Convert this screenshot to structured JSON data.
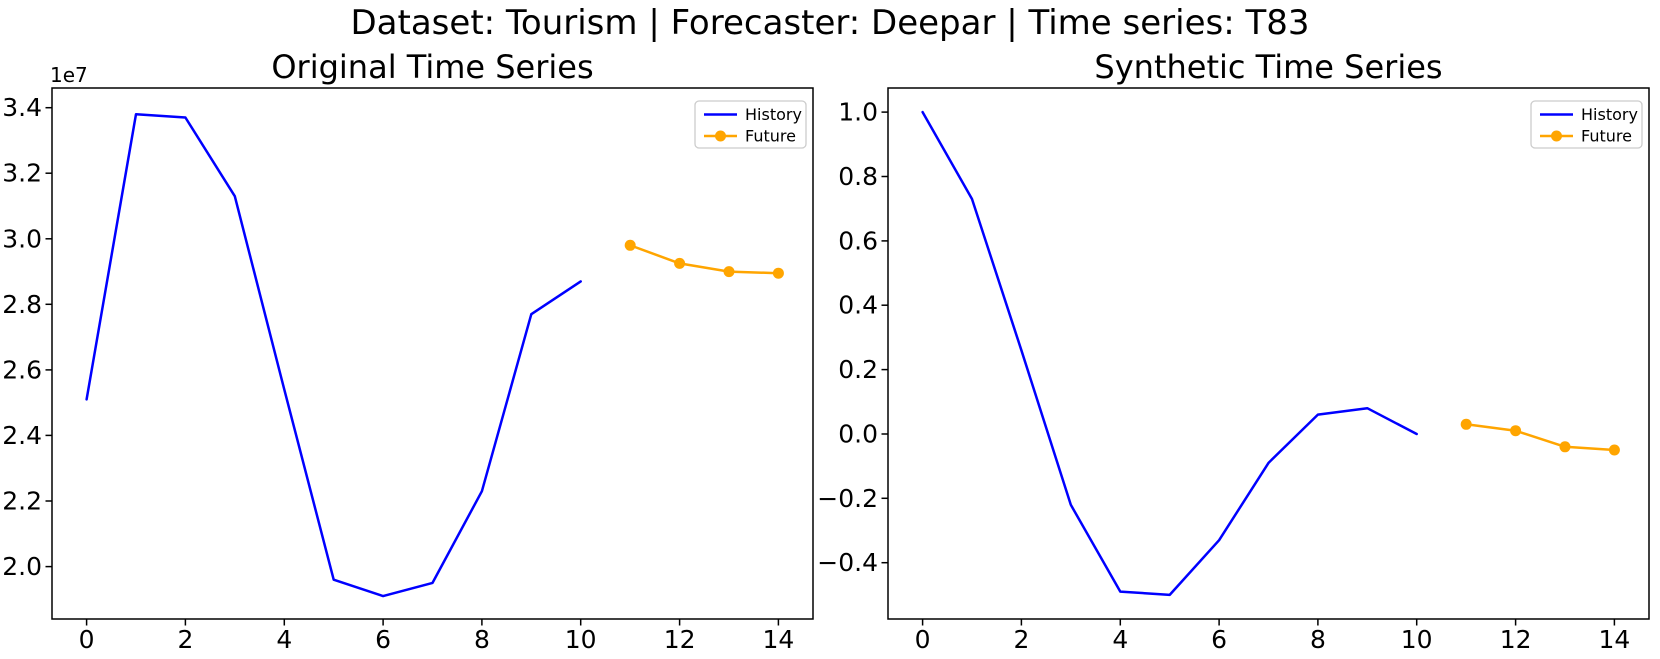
{
  "suptitle": "Dataset: Tourism | Forecaster: Deepar | Time series: T83",
  "colors": {
    "history": "#0000ff",
    "future": "#ffa500",
    "axis": "#000000",
    "text": "#000000",
    "legend_border": "#cccccc",
    "background": "#ffffff"
  },
  "chart_data": [
    {
      "type": "line",
      "title": "Original Time Series",
      "y_offset_label": "1e7",
      "legend_position": "upper right",
      "grid": false,
      "xlabel": "",
      "ylabel": "",
      "xlim": [
        -0.7,
        14.7
      ],
      "ylim": [
        18400000,
        34600000
      ],
      "xticks": {
        "values": [
          0,
          2,
          4,
          6,
          8,
          10,
          12,
          14
        ],
        "labels": [
          "0",
          "2",
          "4",
          "6",
          "8",
          "10",
          "12",
          "14"
        ]
      },
      "yticks": {
        "values": [
          20000000,
          22000000,
          24000000,
          26000000,
          28000000,
          30000000,
          32000000,
          34000000
        ],
        "labels": [
          "2.0",
          "2.2",
          "2.4",
          "2.6",
          "2.8",
          "3.0",
          "3.2",
          "3.4"
        ]
      },
      "series": [
        {
          "name": "History",
          "color_key": "history",
          "marker": "none",
          "x": [
            0,
            1,
            2,
            3,
            4,
            5,
            6,
            7,
            8,
            9,
            10
          ],
          "values": [
            25100000,
            33800000,
            33700000,
            31300000,
            25400000,
            19600000,
            19100000,
            19500000,
            22300000,
            27700000,
            28700000
          ]
        },
        {
          "name": "Future",
          "color_key": "future",
          "marker": "circle",
          "x": [
            11,
            12,
            13,
            14
          ],
          "values": [
            29800000,
            29250000,
            29000000,
            28950000
          ]
        }
      ]
    },
    {
      "type": "line",
      "title": "Synthetic Time Series",
      "y_offset_label": "",
      "legend_position": "upper right",
      "grid": false,
      "xlabel": "",
      "ylabel": "",
      "xlim": [
        -0.7,
        14.7
      ],
      "ylim": [
        -0.575,
        1.075
      ],
      "xticks": {
        "values": [
          0,
          2,
          4,
          6,
          8,
          10,
          12,
          14
        ],
        "labels": [
          "0",
          "2",
          "4",
          "6",
          "8",
          "10",
          "12",
          "14"
        ]
      },
      "yticks": {
        "values": [
          -0.4,
          -0.2,
          0.0,
          0.2,
          0.4,
          0.6,
          0.8,
          1.0
        ],
        "labels": [
          "−0.4",
          "−0.2",
          "0.0",
          "0.2",
          "0.4",
          "0.6",
          "0.8",
          "1.0"
        ]
      },
      "series": [
        {
          "name": "History",
          "color_key": "history",
          "marker": "none",
          "x": [
            0,
            1,
            2,
            3,
            4,
            5,
            6,
            7,
            8,
            9,
            10
          ],
          "values": [
            1.0,
            0.73,
            0.26,
            -0.22,
            -0.49,
            -0.5,
            -0.33,
            -0.09,
            0.06,
            0.08,
            0.0
          ]
        },
        {
          "name": "Future",
          "color_key": "future",
          "marker": "circle",
          "x": [
            11,
            12,
            13,
            14
          ],
          "values": [
            0.03,
            0.01,
            -0.04,
            -0.05
          ]
        }
      ]
    }
  ]
}
